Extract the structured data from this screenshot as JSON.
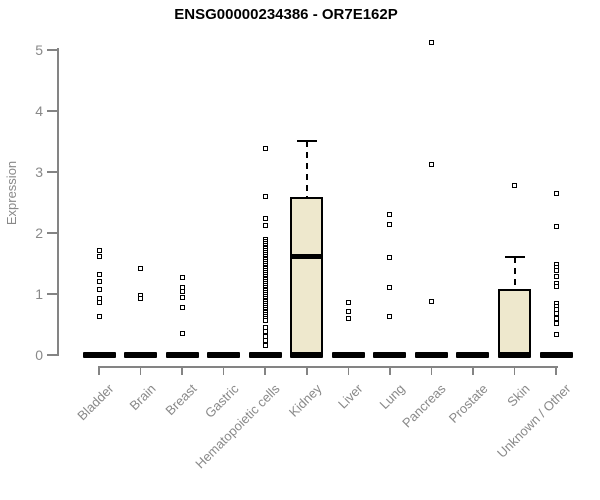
{
  "title": "ENSG00000234386 - OR7E162P",
  "colors": {
    "box_fill": "#EEE8CD",
    "box_border": "#000000",
    "median": "#000000",
    "axis": "#848484",
    "text_gray": "#898989",
    "title_color": "#000000",
    "background": "#ffffff"
  },
  "chart_data": {
    "type": "boxplot",
    "title": "ENSG00000234386 - OR7E162P",
    "xlabel": "",
    "ylabel": "Expression",
    "ylim": [
      0,
      5.2
    ],
    "yticks": [
      0,
      1,
      2,
      3,
      4,
      5
    ],
    "grid": false,
    "legend": null,
    "categories": [
      "Bladder",
      "Brain",
      "Breast",
      "Gastric",
      "Hematopoietic cells",
      "Kidney",
      "Liver",
      "Lung",
      "Pancreas",
      "Prostate",
      "Skin",
      "Unknown / Other"
    ],
    "series": [
      {
        "category": "Bladder",
        "q1": 0,
        "median": 0,
        "q3": 0,
        "whisker_low": 0,
        "whisker_high": 0,
        "outliers": [
          1.72,
          1.61,
          1.32,
          1.2,
          1.07,
          0.93,
          0.86,
          0.63
        ]
      },
      {
        "category": "Brain",
        "q1": 0,
        "median": 0,
        "q3": 0,
        "whisker_low": 0,
        "whisker_high": 0,
        "outliers": [
          1.42,
          0.98,
          0.93
        ]
      },
      {
        "category": "Breast",
        "q1": 0,
        "median": 0,
        "q3": 0,
        "whisker_low": 0,
        "whisker_high": 0,
        "outliers": [
          1.27,
          1.1,
          1.04,
          0.95,
          0.78,
          0.36
        ]
      },
      {
        "category": "Gastric",
        "q1": 0,
        "median": 0,
        "q3": 0,
        "whisker_low": 0,
        "whisker_high": 0,
        "outliers": []
      },
      {
        "category": "Hematopoietic cells",
        "q1": 0,
        "median": 0,
        "q3": 0,
        "whisker_low": 0,
        "whisker_high": 0,
        "outliers": [
          3.39,
          2.6,
          2.24,
          2.13,
          1.89,
          1.86,
          1.83,
          1.8,
          1.77,
          1.74,
          1.71,
          1.68,
          1.65,
          1.62,
          1.59,
          1.56,
          1.53,
          1.5,
          1.47,
          1.44,
          1.41,
          1.38,
          1.35,
          1.32,
          1.29,
          1.26,
          1.23,
          1.2,
          1.17,
          1.14,
          1.11,
          1.08,
          1.05,
          1.02,
          0.99,
          0.96,
          0.93,
          0.9,
          0.87,
          0.84,
          0.81,
          0.78,
          0.75,
          0.72,
          0.69,
          0.66,
          0.63,
          0.6,
          0.57,
          0.45,
          0.38,
          0.31,
          0.24,
          0.16
        ]
      },
      {
        "category": "Kidney",
        "q1": 0,
        "median": 1.62,
        "q3": 2.59,
        "whisker_low": 0,
        "whisker_high": 3.51,
        "outliers": []
      },
      {
        "category": "Liver",
        "q1": 0,
        "median": 0,
        "q3": 0,
        "whisker_low": 0,
        "whisker_high": 0,
        "outliers": [
          0.86,
          0.72,
          0.6
        ]
      },
      {
        "category": "Lung",
        "q1": 0,
        "median": 0,
        "q3": 0,
        "whisker_low": 0,
        "whisker_high": 0,
        "outliers": [
          2.31,
          2.14,
          1.6,
          1.1,
          0.63
        ]
      },
      {
        "category": "Pancreas",
        "q1": 0,
        "median": 0,
        "q3": 0,
        "whisker_low": 0,
        "whisker_high": 0,
        "outliers": [
          5.13,
          3.12,
          0.87
        ]
      },
      {
        "category": "Prostate",
        "q1": 0,
        "median": 0,
        "q3": 0,
        "whisker_low": 0,
        "whisker_high": 0,
        "outliers": []
      },
      {
        "category": "Skin",
        "q1": 0,
        "median": 0,
        "q3": 1.08,
        "whisker_low": 0,
        "whisker_high": 1.61,
        "outliers": [
          2.78
        ]
      },
      {
        "category": "Unknown / Other",
        "q1": 0,
        "median": 0,
        "q3": 0,
        "whisker_low": 0,
        "whisker_high": 0,
        "outliers": [
          2.64,
          2.1,
          1.48,
          1.43,
          1.38,
          1.28,
          1.18,
          1.12,
          0.85,
          0.8,
          0.74,
          0.68,
          0.6,
          0.52,
          0.33
        ]
      }
    ]
  }
}
